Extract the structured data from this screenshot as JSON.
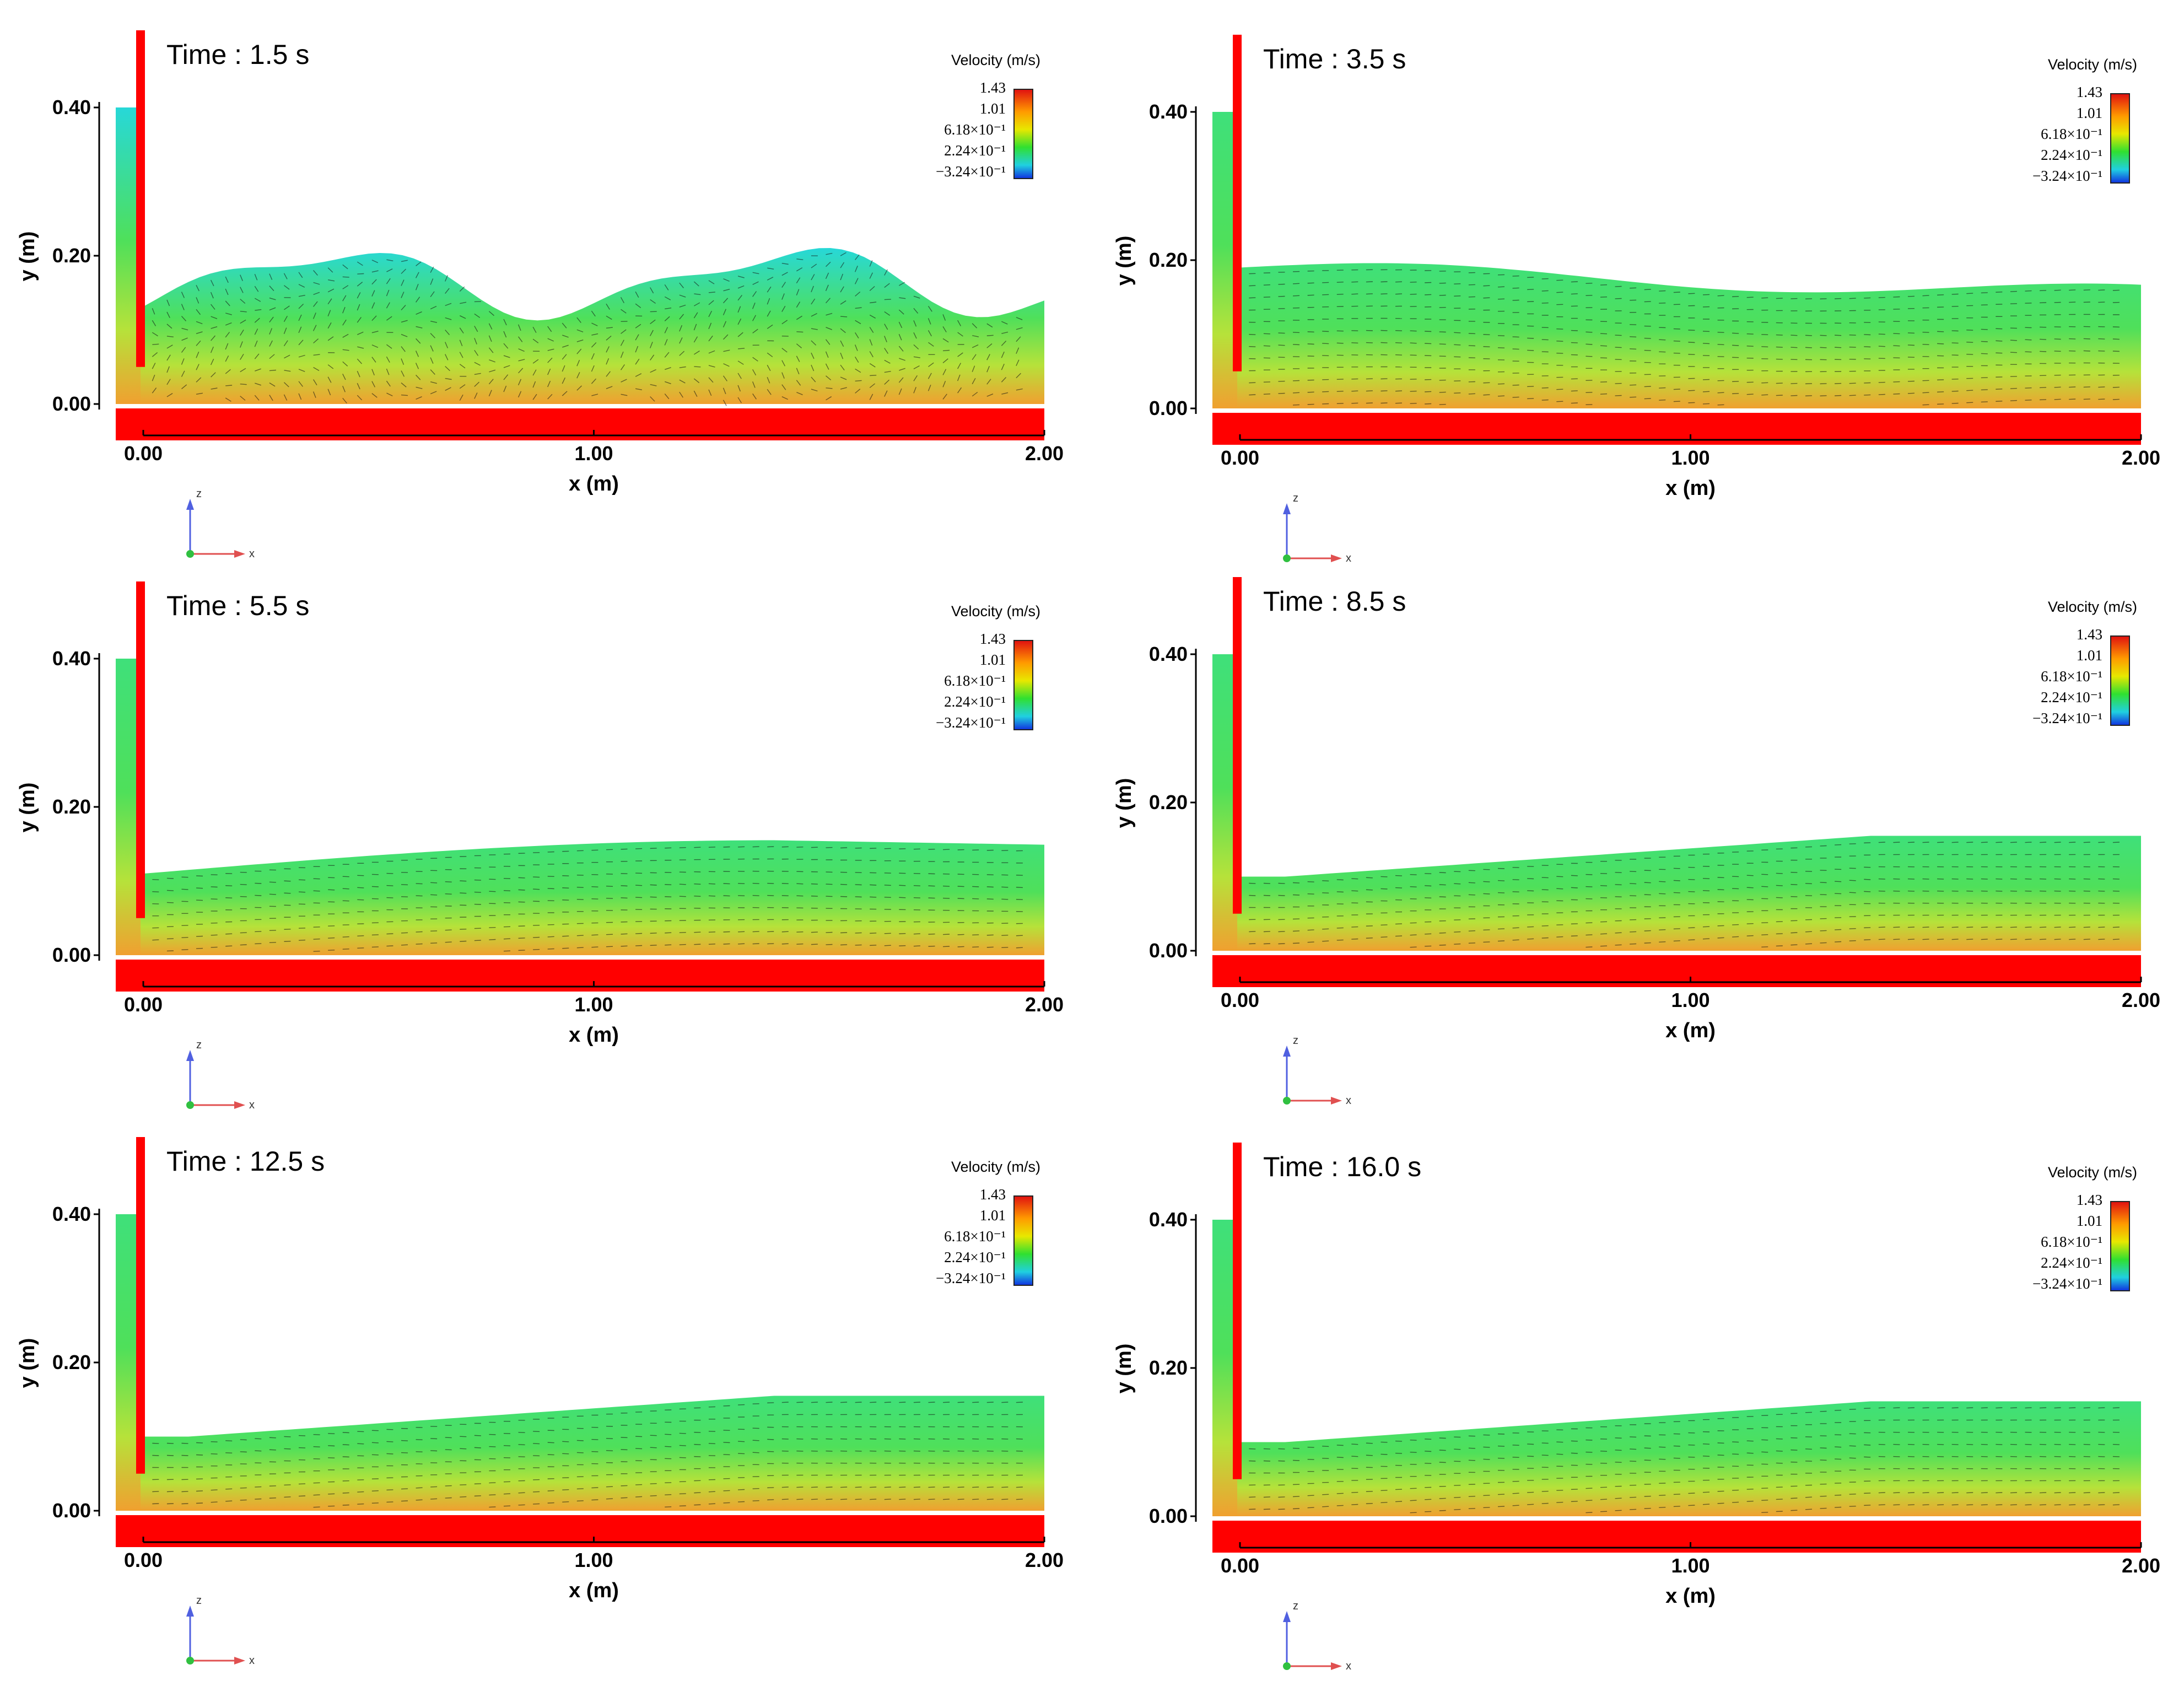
{
  "panels": [
    {
      "time_label": "Time : 1.5 s",
      "surface": "wavy"
    },
    {
      "time_label": "Time : 3.5 s",
      "surface": "mild"
    },
    {
      "time_label": "Time : 5.5 s",
      "surface": "bump"
    },
    {
      "time_label": "Time : 8.5 s",
      "surface": "rise"
    },
    {
      "time_label": "Time : 12.5 s",
      "surface": "rise"
    },
    {
      "time_label": "Time : 16.0 s",
      "surface": "rise"
    }
  ],
  "axes": {
    "y_label": "y (m)",
    "x_label": "x (m)",
    "y_ticks": [
      "0.40",
      "0.20",
      "0.00"
    ],
    "x_ticks": [
      "0.00",
      "1.00",
      "2.00"
    ]
  },
  "legend": {
    "title": "Velocity (m/s)",
    "values": [
      "1.43",
      "1.01",
      "6.18×10⁻¹",
      "2.24×10⁻¹",
      "−3.24×10⁻¹"
    ]
  },
  "triad": {
    "z_label": "z",
    "x_label": "x"
  },
  "colors": {
    "wall": "#ff0000",
    "vector": "#111111"
  }
}
